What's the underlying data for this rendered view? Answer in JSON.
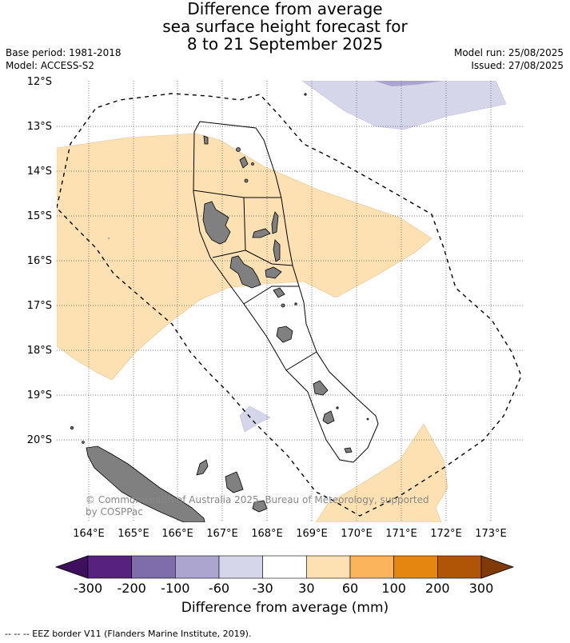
{
  "title_lines": [
    "Difference from average",
    "sea surface height forecast for",
    "8 to 21 September 2025"
  ],
  "base_period": "Base period: 1981-2018",
  "model": "Model: ACCESS-S2",
  "model_run": "Model run: 25/08/2025",
  "issued": "Issued: 27/08/2025",
  "lat_labels": [
    "12°S",
    "13°S",
    "14°S",
    "15°S",
    "16°S",
    "17°S",
    "18°S",
    "19°S",
    "20°S"
  ],
  "lon_labels": [
    "164°E",
    "165°E",
    "166°E",
    "167°E",
    "168°E",
    "169°E",
    "170°E",
    "171°E",
    "172°E",
    "173°E"
  ],
  "copyright": "© Commonwealth of Australia 2025, Bureau of Meteorology, supported by COSPPac",
  "colorbar": {
    "ticks": [
      "-300",
      "-200",
      "-100",
      "-60",
      "-30",
      "30",
      "60",
      "100",
      "200",
      "300"
    ],
    "colors": [
      "#3d0f5c",
      "#57227f",
      "#7e6cab",
      "#aca5cf",
      "#d6d6ea",
      "#ffffff",
      "#fde1b3",
      "#fbb45c",
      "#e4860f",
      "#b05505",
      "#7f3a08"
    ],
    "label": "Difference from average (mm)"
  },
  "footer": "--  --  -- EEZ border V11 (Flanders Marine Institute, 2019)."
}
